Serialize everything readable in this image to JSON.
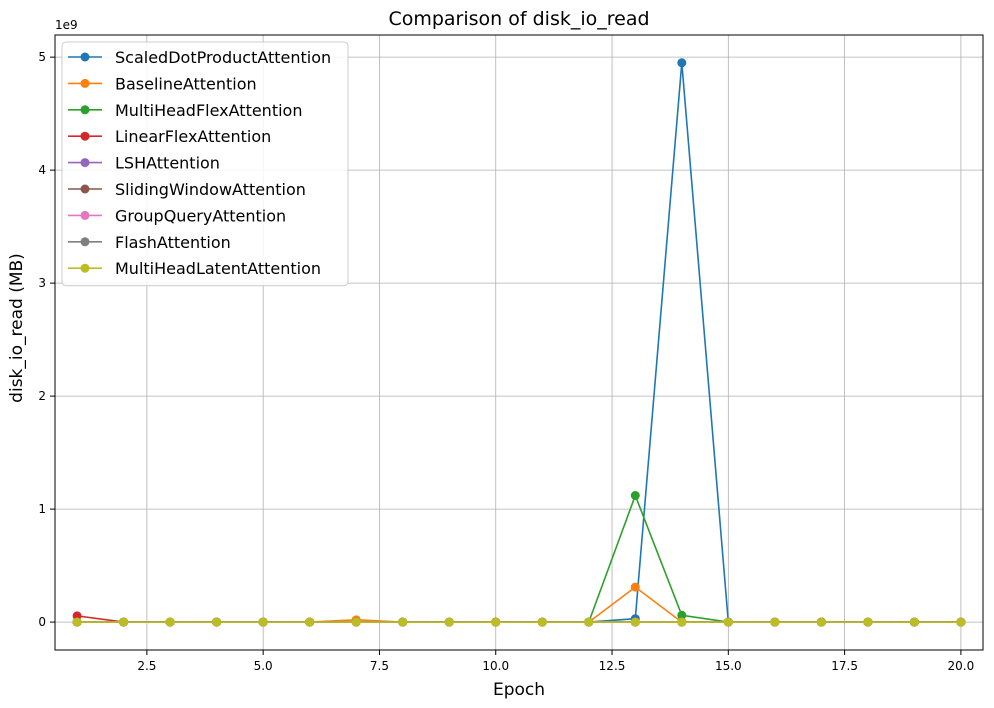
{
  "chart_data": {
    "type": "line",
    "title": "Comparison of disk_io_read",
    "xlabel": "Epoch",
    "ylabel": "disk_io_read (MB)",
    "y_offset_text": "1e9",
    "y_multiplier": 1000000000,
    "xlim": [
      0.525,
      20.475
    ],
    "ylim": [
      -0.247,
      5.196
    ],
    "x_ticks": [
      2.5,
      5.0,
      7.5,
      10.0,
      12.5,
      15.0,
      17.5,
      20.0
    ],
    "x_tick_labels": [
      "2.5",
      "5.0",
      "7.5",
      "10.0",
      "12.5",
      "15.0",
      "17.5",
      "20.0"
    ],
    "y_ticks": [
      0,
      1,
      2,
      3,
      4,
      5
    ],
    "y_tick_labels": [
      "0",
      "1",
      "2",
      "3",
      "4",
      "5"
    ],
    "grid": true,
    "legend_position": "top-left",
    "x": [
      1,
      2,
      3,
      4,
      5,
      6,
      7,
      8,
      9,
      10,
      11,
      12,
      13,
      14,
      15,
      16,
      17,
      18,
      19,
      20
    ],
    "series": [
      {
        "name": "ScaledDotProductAttention",
        "color": "#1f77b4",
        "values": [
          0,
          0,
          0,
          0,
          0,
          0,
          0,
          0,
          0,
          0,
          0,
          0,
          0.03,
          4.95,
          0,
          0,
          0,
          0,
          0,
          0
        ]
      },
      {
        "name": "BaselineAttention",
        "color": "#ff7f0e",
        "values": [
          0,
          0,
          0,
          0,
          0,
          0,
          0.02,
          0,
          0,
          0,
          0,
          0,
          0.31,
          0,
          0,
          0,
          0,
          0,
          0,
          0
        ]
      },
      {
        "name": "MultiHeadFlexAttention",
        "color": "#2ca02c",
        "values": [
          0,
          0,
          0,
          0,
          0,
          0,
          0,
          0,
          0,
          0,
          0,
          0,
          1.12,
          0.06,
          0,
          0,
          0,
          0,
          0,
          0
        ]
      },
      {
        "name": "LinearFlexAttention",
        "color": "#d62728",
        "values": [
          0.055,
          0,
          0,
          0,
          0,
          0,
          0,
          0,
          0,
          0,
          0,
          0,
          0,
          0,
          0,
          0,
          0,
          0,
          0,
          0
        ]
      },
      {
        "name": "LSHAttention",
        "color": "#9467bd",
        "values": [
          0,
          0,
          0,
          0,
          0,
          0,
          0,
          0,
          0,
          0,
          0,
          0,
          0,
          0,
          0,
          0,
          0,
          0,
          0,
          0
        ]
      },
      {
        "name": "SlidingWindowAttention",
        "color": "#8c564b",
        "values": [
          0,
          0,
          0,
          0,
          0,
          0,
          0,
          0,
          0,
          0,
          0,
          0,
          0,
          0,
          0,
          0,
          0,
          0,
          0,
          0
        ]
      },
      {
        "name": "GroupQueryAttention",
        "color": "#e377c2",
        "values": [
          0,
          0,
          0,
          0,
          0,
          0,
          0,
          0,
          0,
          0,
          0,
          0,
          0,
          0,
          0,
          0,
          0,
          0,
          0,
          0
        ]
      },
      {
        "name": "FlashAttention",
        "color": "#7f7f7f",
        "values": [
          0,
          0,
          0,
          0,
          0,
          0,
          0,
          0,
          0,
          0,
          0,
          0,
          0,
          0,
          0,
          0,
          0,
          0,
          0,
          0
        ]
      },
      {
        "name": "MultiHeadLatentAttention",
        "color": "#bcbd22",
        "values": [
          0,
          0,
          0,
          0,
          0,
          0,
          0,
          0,
          0,
          0,
          0,
          0,
          0,
          0,
          0,
          0,
          0,
          0,
          0,
          0
        ]
      }
    ]
  }
}
